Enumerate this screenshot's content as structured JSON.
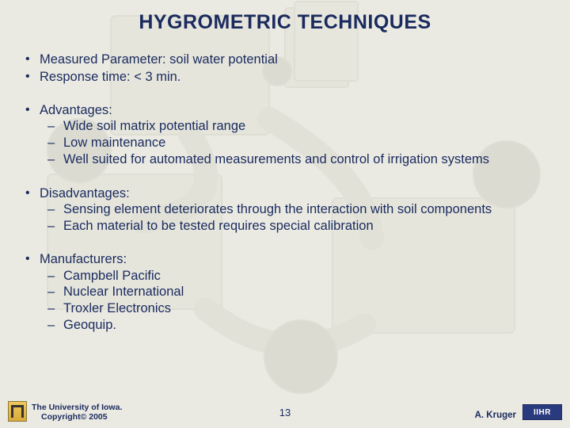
{
  "title": "HYGROMETRIC TECHNIQUES",
  "bullets": [
    {
      "label": "Measured Parameter: soil water potential"
    },
    {
      "label": "Response time: < 3 min."
    },
    {
      "label": "Advantages:",
      "group": true,
      "sub": [
        "Wide soil matrix potential range",
        "Low maintenance",
        "Well suited for automated measurements and control of irrigation systems"
      ]
    },
    {
      "label": "Disadvantages:",
      "group": true,
      "sub": [
        "Sensing element deteriorates through the interaction with soil components",
        "Each material to be tested requires special calibration"
      ]
    },
    {
      "label": "Manufacturers:",
      "group": true,
      "sub": [
        "Campbell Pacific",
        "Nuclear International",
        "Troxler Electronics",
        "Geoquip."
      ]
    }
  ],
  "footer": {
    "left_line1": "The University of Iowa.",
    "left_line2": "Copyright© 2005",
    "page": "13",
    "author": "A. Kruger",
    "right_logo": "IIHR"
  },
  "style": {
    "text_color": "#1a2a5e",
    "background_color": "#eaeae2",
    "title_fontsize": 25,
    "body_fontsize": 16.5,
    "footer_small_fontsize": 10.5,
    "bg_shape_stroke": "#c9c9be",
    "bg_shape_fill_light": "#dcdcd2",
    "bg_shape_fill_dark": "#c2c2b6"
  }
}
